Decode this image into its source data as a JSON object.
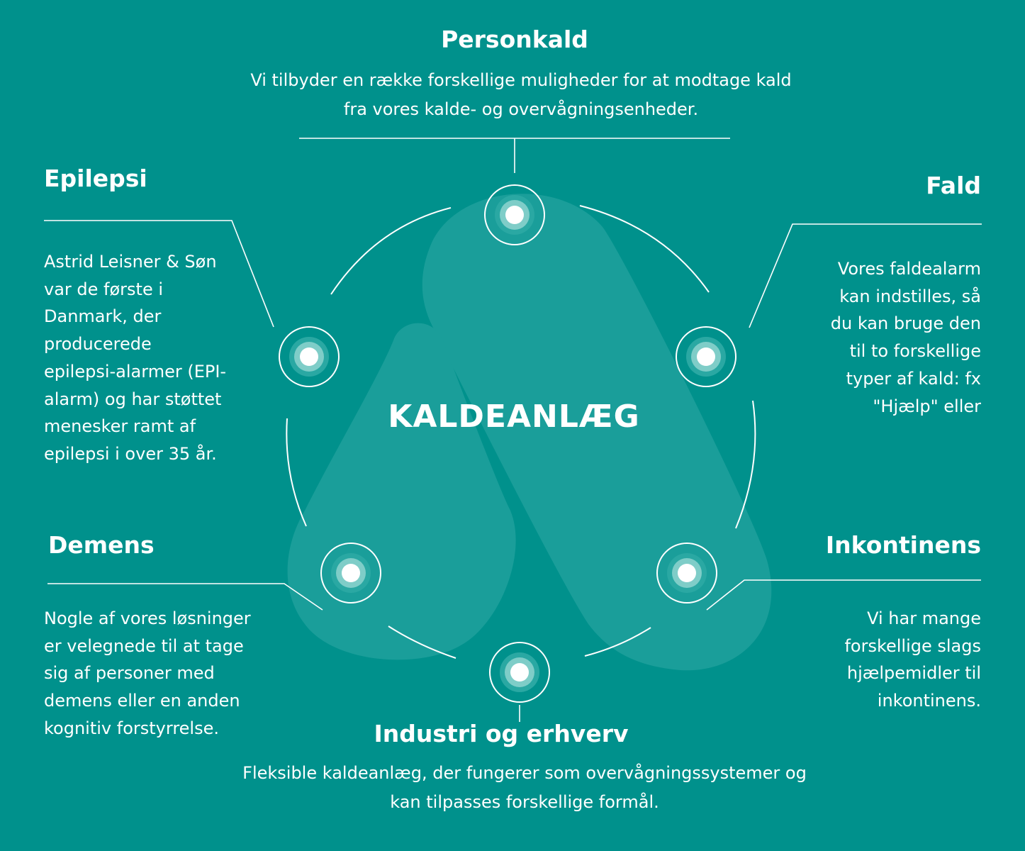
{
  "center": {
    "title": "KALDEANLÆG"
  },
  "sections": {
    "personkald": {
      "title": "Personkald",
      "text": "Vi tilbyder en række forskellige muligheder for at modtage kald fra vores kalde- og overvågningsenheder."
    },
    "epilepsi": {
      "title": "Epilepsi",
      "text": "Astrid Leisner & Søn var de første i Danmark, der producerede epilepsi-alarmer (EPI-alarm)  og har støttet menesker ramt af epilepsi i over 35 år."
    },
    "fald": {
      "title": "Fald",
      "text": "Vores faldealarm kan indstilles, så du kan bruge den til to forskellige typer af kald: fx \"Hjælp\" eller"
    },
    "demens": {
      "title": "Demens",
      "text": "Nogle af vores løsninger er velegnede til at tage sig af personer med demens eller en anden kognitiv forstyrrelse."
    },
    "inkontinens": {
      "title": "Inkontinens",
      "text": "Vi har mange forskellige slags hjælpemidler til inkontinens."
    },
    "industri": {
      "title": "Industri og erhverv",
      "text": "Fleksible kaldeanlæg, der fungerer som overvågningssystemer og kan tilpasses forskellige formål."
    }
  },
  "colors": {
    "background": "#00918c",
    "logo_shape": "#1a9e9a",
    "node_outer": "#2aa8a3",
    "node_inner": "#7fcdc8",
    "line": "#ffffff"
  }
}
